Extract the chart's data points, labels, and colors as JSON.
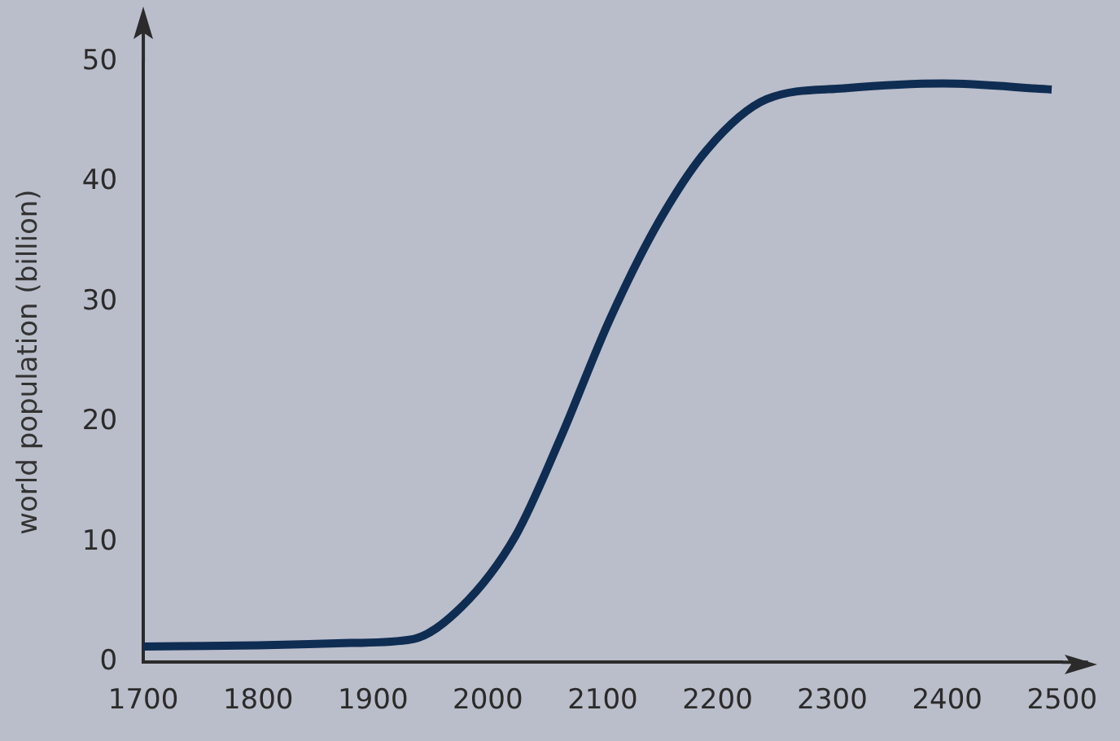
{
  "chart_data": {
    "type": "line",
    "ylabel": "world population (billion)",
    "x": [
      1700,
      1800,
      1881,
      1934,
      1977,
      2024,
      2063,
      2106,
      2149,
      2191,
      2243,
      2310,
      2396,
      2491
    ],
    "values": [
      1.3,
      1.4,
      1.6,
      1.9,
      4.6,
      10.5,
      18.6,
      28.5,
      36.7,
      42.7,
      46.9,
      47.8,
      48.2,
      47.7
    ],
    "color": "#0f2d52",
    "xlim": [
      1700,
      2500
    ],
    "xticks": [
      1700,
      1800,
      1900,
      2000,
      2100,
      2200,
      2300,
      2400,
      2500
    ],
    "ylim": [
      0,
      50
    ],
    "yticks": [
      0,
      10,
      20,
      30,
      40,
      50
    ],
    "grid": false
  }
}
